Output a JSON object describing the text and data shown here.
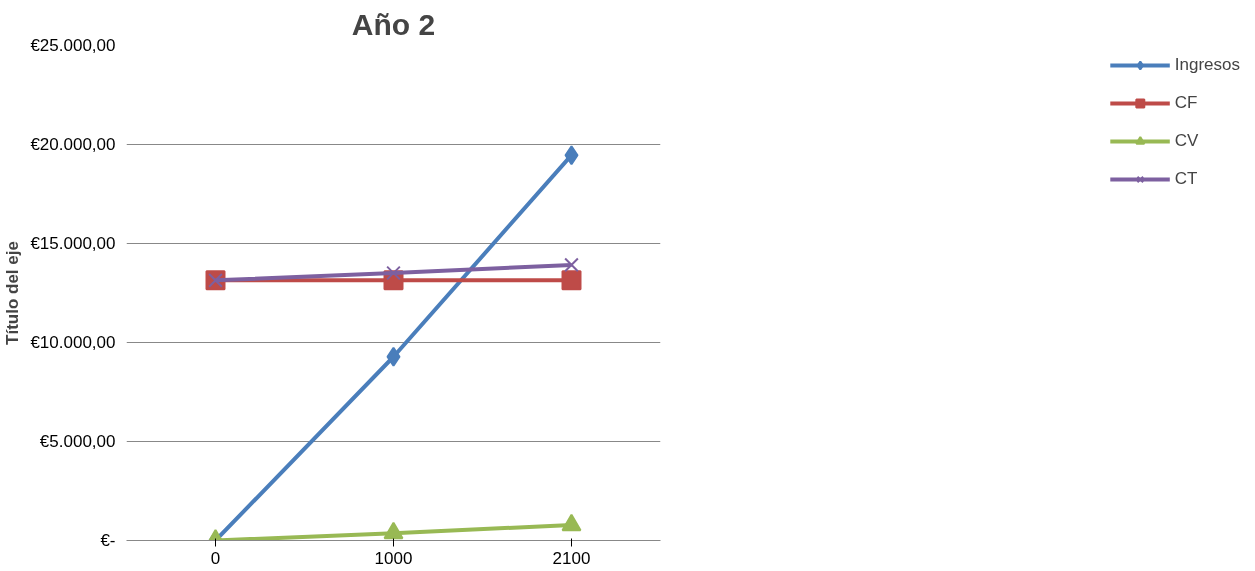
{
  "chart_data": {
    "type": "line",
    "title": "Año 2",
    "ylabel": "Título del eje",
    "categories": [
      "0",
      "1000",
      "2100"
    ],
    "series": [
      {
        "name": "Ingresos",
        "color": "#4a7ebb",
        "marker": "diamond",
        "values": [
          0,
          9280,
          19460
        ]
      },
      {
        "name": "CF",
        "color": "#be4b48",
        "marker": "square",
        "values": [
          13140,
          13140,
          13140
        ]
      },
      {
        "name": "CV",
        "color": "#98b954",
        "marker": "triangle",
        "values": [
          0,
          370,
          780
        ]
      },
      {
        "name": "CT",
        "color": "#7d60a0",
        "marker": "cross",
        "values": [
          13140,
          13510,
          13920
        ]
      }
    ],
    "ylim": [
      0,
      25000
    ],
    "yticks": [
      {
        "value": 0,
        "label": "€-"
      },
      {
        "value": 5000,
        "label": "€5.000,00"
      },
      {
        "value": 10000,
        "label": "€10.000,00"
      },
      {
        "value": 15000,
        "label": "€15.000,00"
      },
      {
        "value": 20000,
        "label": "€20.000,00"
      },
      {
        "value": 25000,
        "label": "€25.000,00"
      }
    ],
    "grid": "y",
    "legend": "right"
  }
}
